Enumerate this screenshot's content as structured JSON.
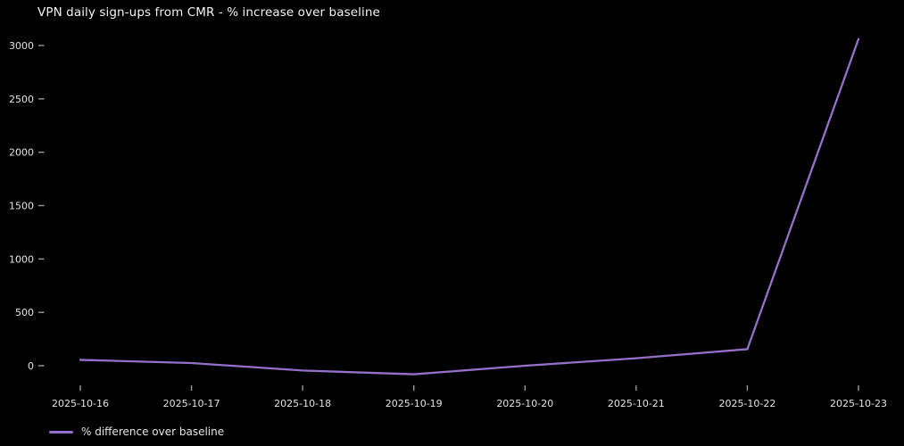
{
  "title": "VPN daily sign-ups from CMR - % increase over baseline",
  "legend": {
    "label": "% difference over baseline"
  },
  "colors": {
    "background": "#000000",
    "line": "#9470c8",
    "tick_text": "#e2e2e2",
    "tick_mark": "#9a9a9a",
    "title_text": "#f2f2f2"
  },
  "chart_data": {
    "type": "line",
    "title": "VPN daily sign-ups from CMR - % increase over baseline",
    "xlabel": "",
    "ylabel": "",
    "categories": [
      "2025-10-16",
      "2025-10-17",
      "2025-10-18",
      "2025-10-19",
      "2025-10-20",
      "2025-10-21",
      "2025-10-22",
      "2025-10-23"
    ],
    "series": [
      {
        "name": "% difference over baseline",
        "values": [
          55,
          25,
          -45,
          -80,
          0,
          70,
          155,
          3060
        ]
      }
    ],
    "yticks": [
      0,
      500,
      1000,
      1500,
      2000,
      2500,
      3000
    ],
    "ylim": [
      -185,
      3175
    ],
    "grid": false,
    "legend_position": "bottom-left"
  }
}
